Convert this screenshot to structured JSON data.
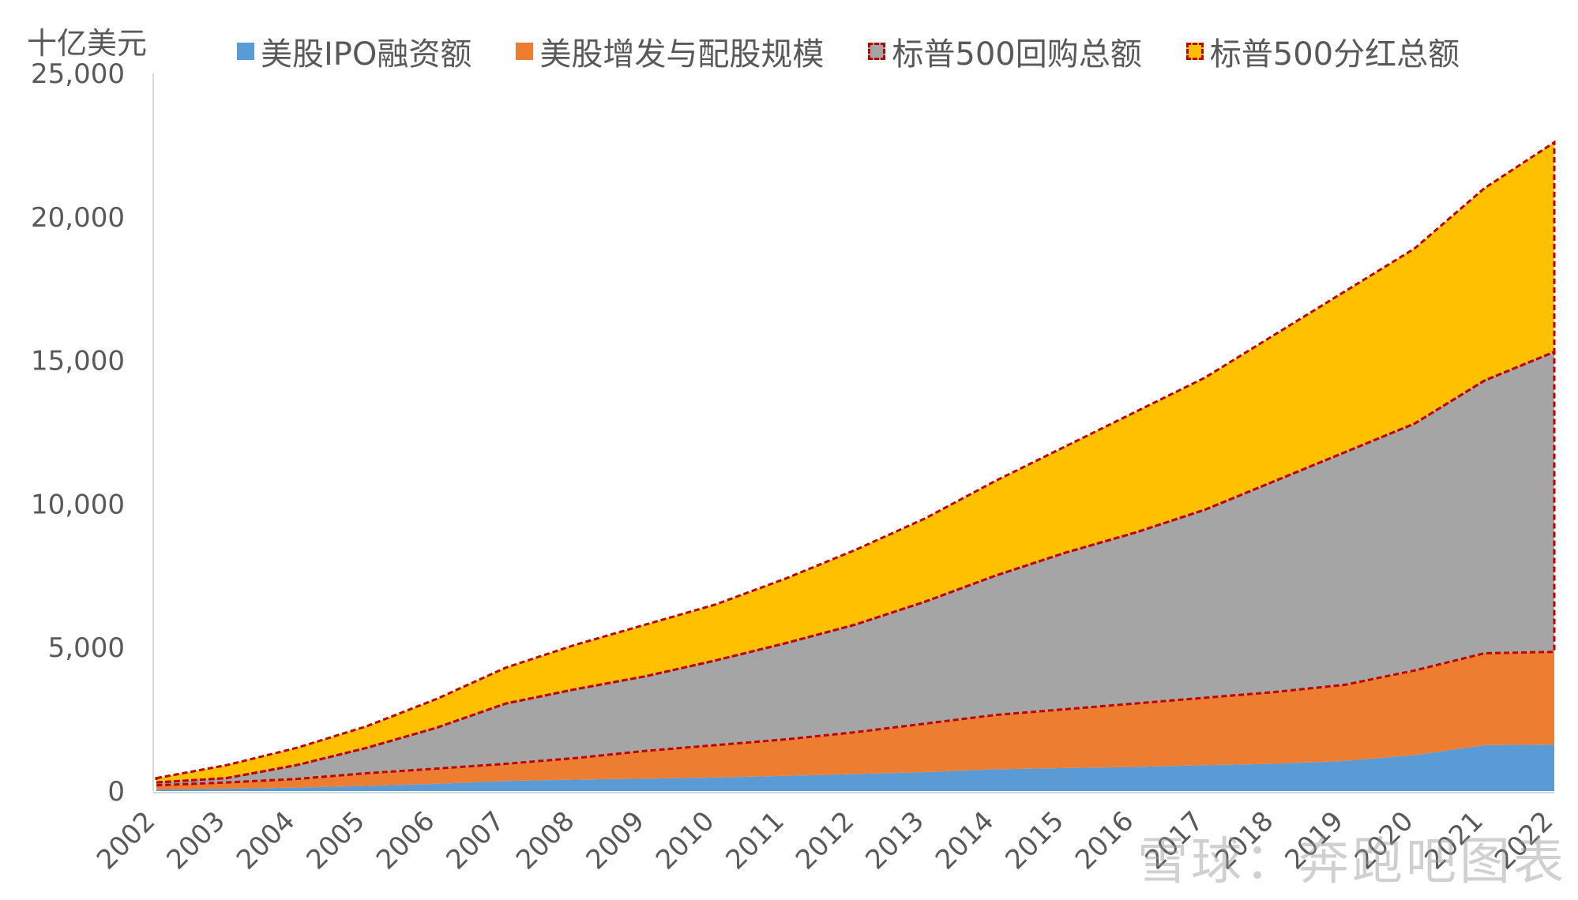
{
  "chart_data": {
    "type": "area",
    "stacked": true,
    "unit_label": "十亿美元",
    "categories": [
      "2002",
      "2003",
      "2004",
      "2005",
      "2006",
      "2007",
      "2008",
      "2009",
      "2010",
      "2011",
      "2012",
      "2013",
      "2014",
      "2015",
      "2016",
      "2017",
      "2018",
      "2019",
      "2020",
      "2021",
      "2022"
    ],
    "ylim": [
      0,
      25000
    ],
    "yticks": [
      "0",
      "5,000",
      "10,000",
      "15,000",
      "20,000",
      "25,000"
    ],
    "ytick_values": [
      0,
      5000,
      10000,
      15000,
      20000,
      25000
    ],
    "grid": false,
    "legend_position": "top",
    "series": [
      {
        "name": "美股IPO融资额",
        "color": "#5B9BD5",
        "dashed_outline": false,
        "values": [
          50,
          80,
          120,
          180,
          250,
          350,
          400,
          430,
          470,
          530,
          590,
          660,
          760,
          800,
          840,
          900,
          950,
          1050,
          1250,
          1600,
          1620
        ]
      },
      {
        "name": "美股增发与配股规模",
        "color": "#ED7D31",
        "dashed_outline": false,
        "values": [
          150,
          220,
          300,
          440,
          530,
          600,
          750,
          970,
          1130,
          1270,
          1460,
          1690,
          1890,
          2050,
          2210,
          2350,
          2500,
          2650,
          2950,
          3200,
          3230
        ]
      },
      {
        "name": "标普500回购总额",
        "color": "#A5A5A5",
        "dashed_outline": true,
        "values": [
          100,
          150,
          480,
          880,
          1420,
          2100,
          2400,
          2600,
          2950,
          3350,
          3750,
          4250,
          4850,
          5450,
          5950,
          6550,
          7350,
          8100,
          8600,
          9500,
          10450
        ]
      },
      {
        "name": "标普500分红总额",
        "color": "#FFC000",
        "dashed_outline": true,
        "values": [
          150,
          450,
          600,
          750,
          1000,
          1250,
          1550,
          1800,
          1950,
          2250,
          2600,
          2900,
          3300,
          3700,
          4200,
          4600,
          5100,
          5600,
          6100,
          6700,
          7300
        ]
      }
    ],
    "outline_color": "#C00000"
  },
  "watermark": "雪球：奔跑吧图表"
}
